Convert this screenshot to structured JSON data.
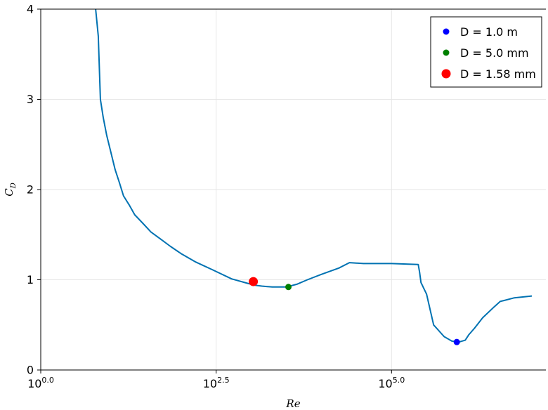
{
  "chart_data": {
    "type": "line",
    "xscale": "log10",
    "xlim": [
      0,
      7.2
    ],
    "ylim": [
      0,
      4
    ],
    "grid": true,
    "legend_position": "top-right",
    "xlabel": "Re",
    "ylabel_main": "C",
    "ylabel_sub": "D",
    "xticks": [
      {
        "value": 0,
        "base": "10",
        "exp": "0.0"
      },
      {
        "value": 2.5,
        "base": "10",
        "exp": "2.5"
      },
      {
        "value": 5.0,
        "base": "10",
        "exp": "5.0"
      }
    ],
    "yticks": [
      {
        "value": 0,
        "label": "0"
      },
      {
        "value": 1,
        "label": "1"
      },
      {
        "value": 2,
        "label": "2"
      },
      {
        "value": 3,
        "label": "3"
      },
      {
        "value": 4,
        "label": "4"
      }
    ],
    "series": [
      {
        "kind": "line",
        "color": "#0072B2",
        "x": [
          0.77,
          0.82,
          0.85,
          0.89,
          0.94,
          1.0,
          1.06,
          1.12,
          1.18,
          1.26,
          1.34,
          1.45,
          1.57,
          1.71,
          1.85,
          2.0,
          2.2,
          2.45,
          2.72,
          2.95,
          3.05,
          3.15,
          3.3,
          3.5,
          3.65,
          3.8,
          4.0,
          4.25,
          4.4,
          4.6,
          5.0,
          5.38,
          5.4,
          5.42,
          5.5,
          5.6,
          5.75,
          5.86,
          5.96,
          6.05,
          6.1,
          6.18,
          6.3,
          6.45,
          6.55,
          6.6,
          6.75,
          7.0
        ],
        "y": [
          4.1,
          3.7,
          3.0,
          2.8,
          2.6,
          2.41,
          2.22,
          2.08,
          1.93,
          1.83,
          1.72,
          1.63,
          1.53,
          1.45,
          1.37,
          1.29,
          1.2,
          1.11,
          1.01,
          0.96,
          0.94,
          0.93,
          0.92,
          0.92,
          0.95,
          1.0,
          1.06,
          1.13,
          1.19,
          1.18,
          1.18,
          1.17,
          1.08,
          0.97,
          0.84,
          0.5,
          0.37,
          0.32,
          0.31,
          0.33,
          0.39,
          0.46,
          0.58,
          0.69,
          0.76,
          0.77,
          0.8,
          0.82
        ]
      }
    ],
    "points": [
      {
        "label": "D = 1.0 m",
        "x": 5.93,
        "y": 0.31,
        "color": "#0000FF",
        "size": 9
      },
      {
        "label": "D = 5.0 mm",
        "x": 3.53,
        "y": 0.92,
        "color": "#008000",
        "size": 9
      },
      {
        "label": "D = 1.58 mm",
        "x": 3.03,
        "y": 0.98,
        "color": "#FF0000",
        "size": 13
      }
    ]
  }
}
